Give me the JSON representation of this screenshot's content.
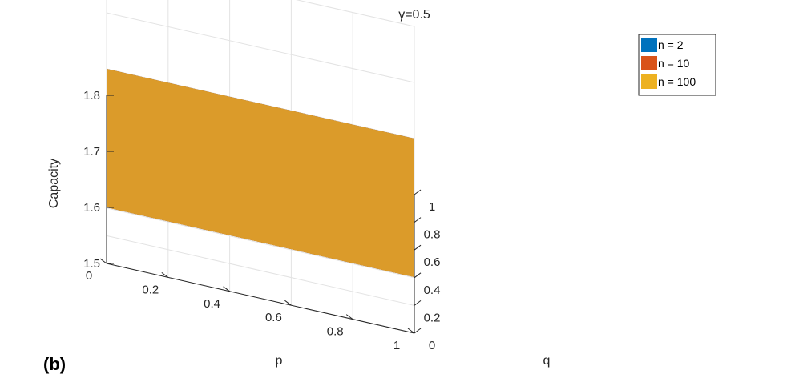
{
  "panel_label": "(b)",
  "chart_data": {
    "type": "surface3d",
    "title": "γ=0.5",
    "xlabel": "p",
    "ylabel": "q",
    "zlabel": "Capacity",
    "x_ticks": [
      "0",
      "0.2",
      "0.4",
      "0.6",
      "0.8",
      "1"
    ],
    "y_ticks": [
      "0",
      "0.2",
      "0.4",
      "0.6",
      "0.8",
      "1"
    ],
    "z_ticks": [
      "1.5",
      "1.6",
      "1.7",
      "1.8"
    ],
    "xlim": [
      0,
      1
    ],
    "ylim": [
      0,
      1
    ],
    "zlim": [
      1.5,
      1.8
    ],
    "grid": true,
    "legend_position": "top-right",
    "series": [
      {
        "name": "n = 2",
        "color": "#0072BD",
        "z_constant": 1.6
      },
      {
        "name": "n = 10",
        "color": "#D95319",
        "z_constant": 1.6
      },
      {
        "name": "n = 100",
        "color": "#EDB120",
        "z_constant": 1.6
      }
    ],
    "visible_surface_color": "#DB9B2A"
  }
}
